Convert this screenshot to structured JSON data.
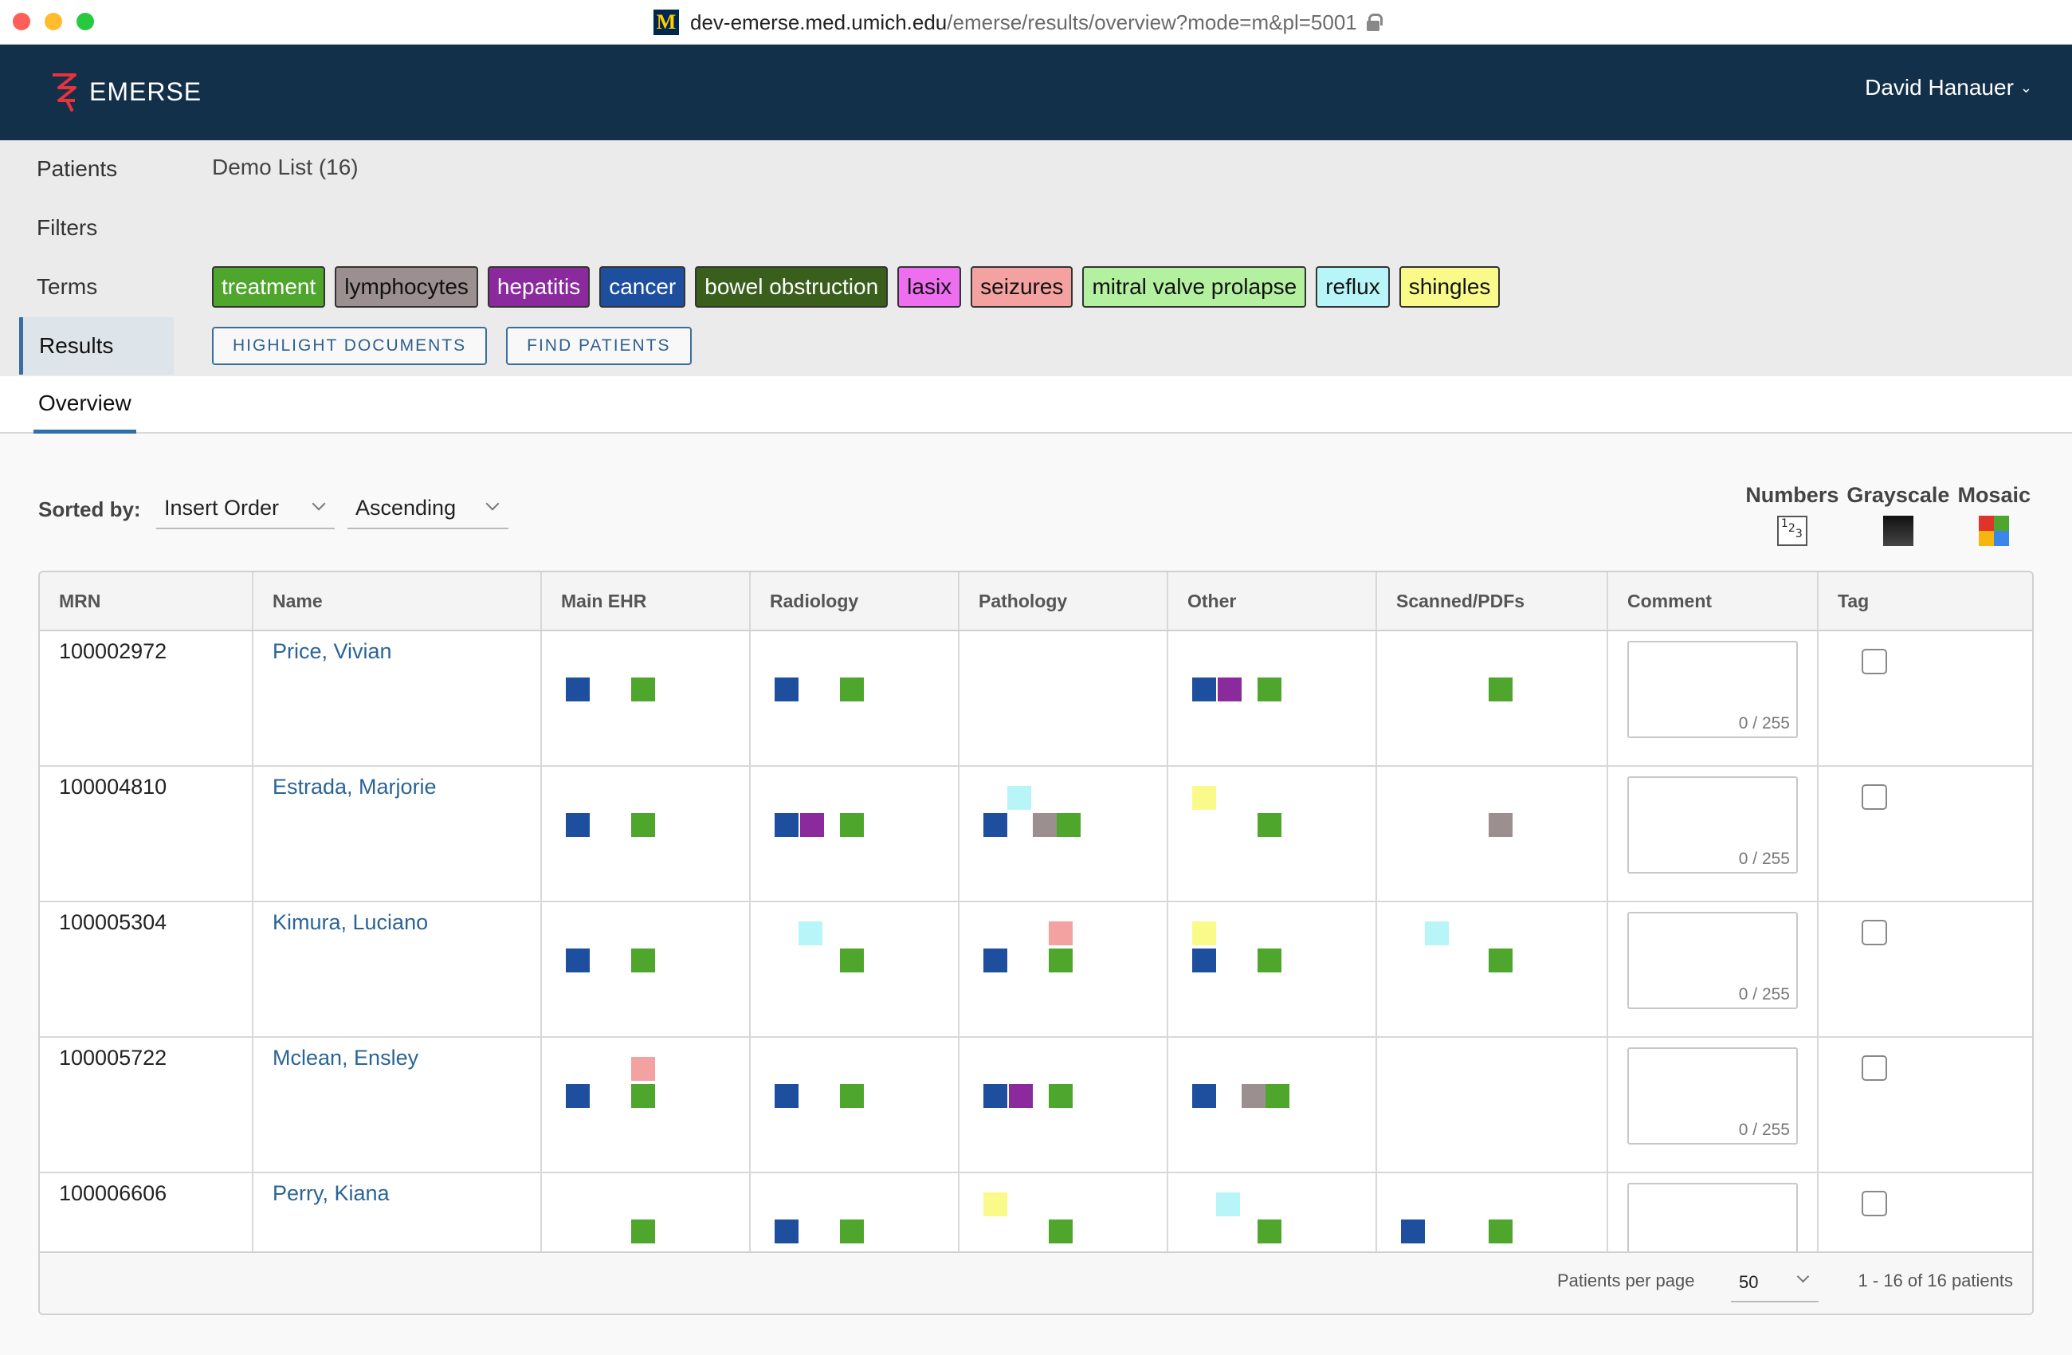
{
  "browser": {
    "host": "dev-emerse.med.umich.edu",
    "path": "/emerse/results/overview?mode=m&pl=5001"
  },
  "app": {
    "brand": "EMERSE",
    "user": "David Hanauer"
  },
  "sidebar": {
    "items": [
      {
        "label": "Patients"
      },
      {
        "label": "Filters"
      },
      {
        "label": "Terms"
      },
      {
        "label": "Results"
      }
    ]
  },
  "list_title": "Demo List (16)",
  "terms": [
    {
      "label": "treatment",
      "bg": "#4ea62d",
      "fg": "#ffffff"
    },
    {
      "label": "lymphocytes",
      "bg": "#9b8f8f",
      "fg": "#111111"
    },
    {
      "label": "hepatitis",
      "bg": "#8a2a9c",
      "fg": "#ffffff"
    },
    {
      "label": "cancer",
      "bg": "#1d4f9e",
      "fg": "#ffffff"
    },
    {
      "label": "bowel obstruction",
      "bg": "#3a5e1c",
      "fg": "#ffffff"
    },
    {
      "label": "lasix",
      "bg": "#ee6ef0",
      "fg": "#111111"
    },
    {
      "label": "seizures",
      "bg": "#f4a1a1",
      "fg": "#111111"
    },
    {
      "label": "mitral valve prolapse",
      "bg": "#b3f0a0",
      "fg": "#111111"
    },
    {
      "label": "reflux",
      "bg": "#b8f5f8",
      "fg": "#111111"
    },
    {
      "label": "shingles",
      "bg": "#fafa8a",
      "fg": "#111111"
    }
  ],
  "actions": {
    "highlight": "HIGHLIGHT DOCUMENTS",
    "find": "FIND PATIENTS"
  },
  "tabs": [
    {
      "label": "Overview"
    }
  ],
  "sort": {
    "label": "Sorted by:",
    "order": "Insert Order",
    "direction": "Ascending"
  },
  "view_modes": [
    {
      "label": "Numbers",
      "icon": "numbers-icon"
    },
    {
      "label": "Grayscale",
      "icon": "grayscale-icon"
    },
    {
      "label": "Mosaic",
      "icon": "mosaic-icon"
    }
  ],
  "mosaic_colors": [
    "#e0332a",
    "#4ea62d",
    "#f5b70f",
    "#3a86ea"
  ],
  "table": {
    "headers": [
      "MRN",
      "Name",
      "Main EHR",
      "Radiology",
      "Pathology",
      "Other",
      "Scanned/PDFs",
      "Comment",
      "Tag"
    ],
    "comment_limit": "0 / 255",
    "rows": [
      {
        "mrn": "100002972",
        "name": "Price, Vivian",
        "docs": [
          [
            [
              "cancer",
              "treatment"
            ]
          ],
          [
            [
              "cancer",
              "treatment"
            ]
          ],
          [],
          [
            [
              "cancer",
              "hepatitis",
              "treatment"
            ]
          ],
          [
            [
              "treatment"
            ]
          ]
        ]
      },
      {
        "mrn": "100004810",
        "name": "Estrada, Marjorie",
        "docs": [
          [
            [
              "cancer",
              "treatment"
            ]
          ],
          [
            [
              "cancer",
              "hepatitis",
              "treatment"
            ]
          ],
          [
            [
              "reflux"
            ],
            [
              "cancer",
              "lymphocytes",
              "treatment"
            ]
          ],
          [
            [
              "shingles"
            ],
            [
              "treatment"
            ]
          ],
          [
            [
              "lymphocytes"
            ]
          ]
        ]
      },
      {
        "mrn": "100005304",
        "name": "Kimura, Luciano",
        "docs": [
          [
            [
              "cancer",
              "treatment"
            ]
          ],
          [
            [
              "reflux"
            ],
            [
              "treatment"
            ]
          ],
          [
            [
              "seizures"
            ],
            [
              "cancer",
              "treatment"
            ]
          ],
          [
            [
              "shingles"
            ],
            [
              "cancer",
              "treatment"
            ]
          ],
          [
            [
              "reflux"
            ],
            [
              "treatment"
            ]
          ]
        ]
      },
      {
        "mrn": "100005722",
        "name": "Mclean, Ensley",
        "docs": [
          [
            [
              "seizures"
            ],
            [
              "cancer",
              "treatment"
            ]
          ],
          [
            [
              "cancer",
              "treatment"
            ]
          ],
          [
            [
              "cancer",
              "hepatitis",
              "treatment"
            ]
          ],
          [
            [
              "cancer",
              "lymphocytes",
              "treatment"
            ]
          ],
          []
        ]
      },
      {
        "mrn": "100006606",
        "name": "Perry, Kiana",
        "docs": [
          [
            [
              "treatment"
            ]
          ],
          [
            [
              "cancer",
              "treatment"
            ]
          ],
          [
            [
              "shingles"
            ],
            [
              "treatment"
            ]
          ],
          [
            [
              "reflux"
            ],
            [
              "treatment"
            ]
          ],
          [
            [
              "cancer",
              "treatment"
            ]
          ]
        ]
      }
    ]
  },
  "footer": {
    "per_page_label": "Patients per page",
    "per_page": "50",
    "range": "1 - 16 of 16 patients"
  }
}
